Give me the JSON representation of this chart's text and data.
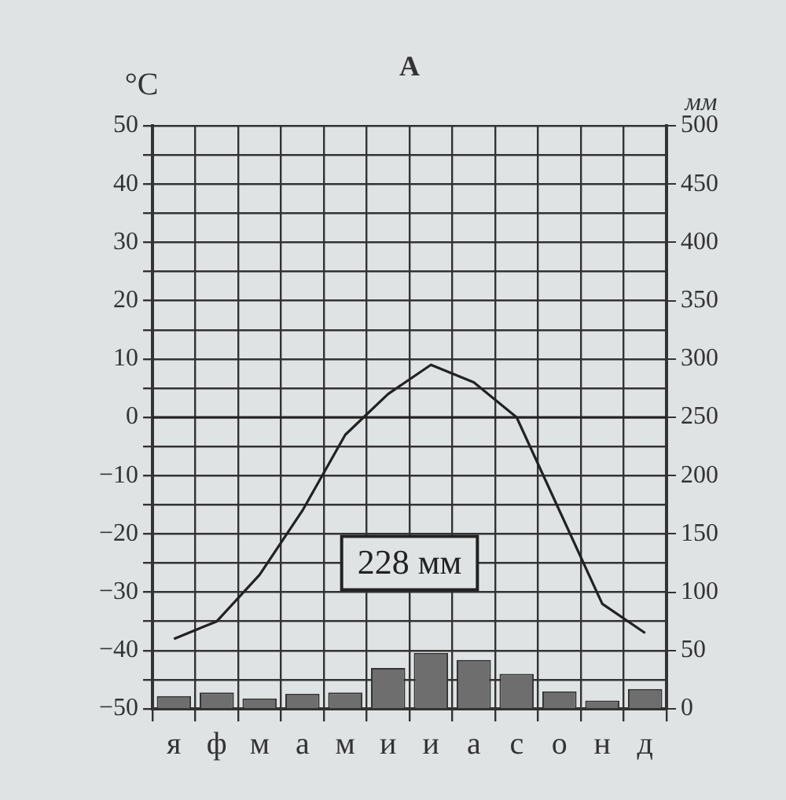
{
  "chart_data": {
    "type": "bar",
    "title": "А",
    "ylabel": "°C",
    "y2label": "мм",
    "categories": [
      "я",
      "ф",
      "м",
      "а",
      "м",
      "и",
      "и",
      "а",
      "с",
      "о",
      "н",
      "д"
    ],
    "series": [
      {
        "axis": "y2",
        "color": "#6e6e6e",
        "values": [
          11,
          14,
          9,
          13,
          14,
          35,
          48,
          42,
          30,
          15,
          7,
          17
        ]
      },
      {
        "type": "line",
        "axis": "y",
        "color": "#222222",
        "values": [
          -38,
          -35,
          -27,
          -16,
          -3,
          4,
          9,
          6,
          0,
          -16,
          -32,
          -37
        ]
      }
    ],
    "ylim": [
      -50,
      50
    ],
    "yticks": [
      -50,
      {
        "value": -45,
        "label": null
      },
      -40,
      {
        "value": -35,
        "label": null
      },
      -30,
      {
        "value": -25,
        "label": null
      },
      -20,
      {
        "value": -15,
        "label": null
      },
      -10,
      {
        "value": -5,
        "label": null
      },
      0,
      {
        "value": 5,
        "label": null
      },
      10,
      {
        "value": 15,
        "label": null
      },
      20,
      {
        "value": 25,
        "label": null
      },
      30,
      {
        "value": 35,
        "label": null
      },
      40,
      {
        "value": 45,
        "label": null
      },
      50
    ],
    "y2lim": [
      0,
      500
    ],
    "y2ticks": [
      0,
      50,
      100,
      150,
      200,
      250,
      300,
      350,
      400,
      450,
      500
    ],
    "ref_lines": [
      {
        "axis": "y",
        "value": 0
      }
    ],
    "annotations": [
      "228 мм"
    ],
    "grid": true,
    "legend": false,
    "marker": "none"
  }
}
